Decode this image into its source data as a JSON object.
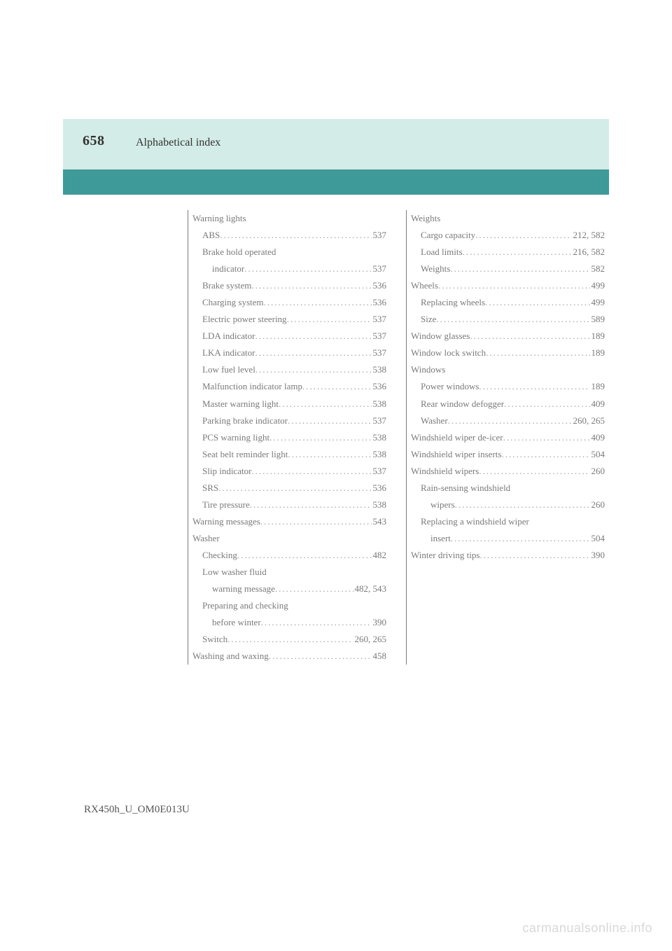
{
  "colors": {
    "band_light": "#d4ece7",
    "band_dark": "#3e9999",
    "text_body": "#7a7a7a",
    "text_header": "#333333",
    "watermark": "#d8d8d8",
    "background": "#ffffff",
    "column_rule": "#7a7a7a"
  },
  "typography": {
    "body_font": "Georgia, 'Times New Roman', serif",
    "body_size_pt": 10,
    "page_num_size_pt": 15,
    "header_title_size_pt": 12,
    "line_height": 1.85
  },
  "header": {
    "page_number": "658",
    "title": "Alphabetical index"
  },
  "footer": {
    "code": "RX450h_U_OM0E013U",
    "watermark": "carmanualsonline.info"
  },
  "left_column": [
    {
      "label": "Warning lights",
      "page": "",
      "level": 0
    },
    {
      "label": "ABS",
      "page": "537",
      "level": 1
    },
    {
      "label": "Brake hold operated",
      "page": "",
      "level": 1
    },
    {
      "label": "indicator",
      "page": "537",
      "level": 2
    },
    {
      "label": "Brake system",
      "page": "536",
      "level": 1
    },
    {
      "label": "Charging system",
      "page": "536",
      "level": 1
    },
    {
      "label": "Electric power steering",
      "page": "537",
      "level": 1
    },
    {
      "label": "LDA indicator",
      "page": "537",
      "level": 1
    },
    {
      "label": "LKA indicator",
      "page": "537",
      "level": 1
    },
    {
      "label": "Low fuel level",
      "page": "538",
      "level": 1
    },
    {
      "label": "Malfunction indicator lamp",
      "page": "536",
      "level": 1
    },
    {
      "label": "Master warning light",
      "page": "538",
      "level": 1
    },
    {
      "label": "Parking brake indicator",
      "page": "537",
      "level": 1
    },
    {
      "label": "PCS warning light",
      "page": "538",
      "level": 1
    },
    {
      "label": "Seat belt reminder light",
      "page": "538",
      "level": 1
    },
    {
      "label": "Slip indicator",
      "page": "537",
      "level": 1
    },
    {
      "label": "SRS",
      "page": "536",
      "level": 1
    },
    {
      "label": "Tire pressure",
      "page": "538",
      "level": 1
    },
    {
      "label": "Warning messages",
      "page": "543",
      "level": 0
    },
    {
      "label": "Washer",
      "page": "",
      "level": 0
    },
    {
      "label": "Checking",
      "page": "482",
      "level": 1
    },
    {
      "label": "Low washer fluid",
      "page": "",
      "level": 1
    },
    {
      "label": "warning message",
      "page": "482, 543",
      "level": 2
    },
    {
      "label": "Preparing and checking",
      "page": "",
      "level": 1
    },
    {
      "label": "before winter",
      "page": "390",
      "level": 2
    },
    {
      "label": "Switch",
      "page": "260, 265",
      "level": 1
    },
    {
      "label": "Washing and waxing",
      "page": "458",
      "level": 0
    }
  ],
  "right_column": [
    {
      "label": "Weights",
      "page": "",
      "level": 0
    },
    {
      "label": "Cargo capacity",
      "page": "212, 582",
      "level": 1
    },
    {
      "label": "Load limits",
      "page": "216, 582",
      "level": 1
    },
    {
      "label": "Weights",
      "page": "582",
      "level": 1
    },
    {
      "label": "Wheels",
      "page": "499",
      "level": 0
    },
    {
      "label": "Replacing wheels",
      "page": "499",
      "level": 1
    },
    {
      "label": "Size",
      "page": "589",
      "level": 1
    },
    {
      "label": "Window glasses",
      "page": "189",
      "level": 0
    },
    {
      "label": "Window lock switch",
      "page": "189",
      "level": 0
    },
    {
      "label": "Windows",
      "page": "",
      "level": 0
    },
    {
      "label": "Power windows",
      "page": "189",
      "level": 1
    },
    {
      "label": "Rear window defogger",
      "page": "409",
      "level": 1
    },
    {
      "label": "Washer",
      "page": "260, 265",
      "level": 1
    },
    {
      "label": "Windshield wiper de-icer",
      "page": "409",
      "level": 0
    },
    {
      "label": "Windshield wiper inserts",
      "page": "504",
      "level": 0
    },
    {
      "label": "Windshield wipers",
      "page": "260",
      "level": 0
    },
    {
      "label": "Rain-sensing windshield",
      "page": "",
      "level": 1
    },
    {
      "label": "wipers",
      "page": "260",
      "level": 2
    },
    {
      "label": "Replacing a windshield wiper",
      "page": "",
      "level": 1
    },
    {
      "label": "insert",
      "page": "504",
      "level": 2
    },
    {
      "label": "Winter driving tips",
      "page": "390",
      "level": 0
    }
  ]
}
